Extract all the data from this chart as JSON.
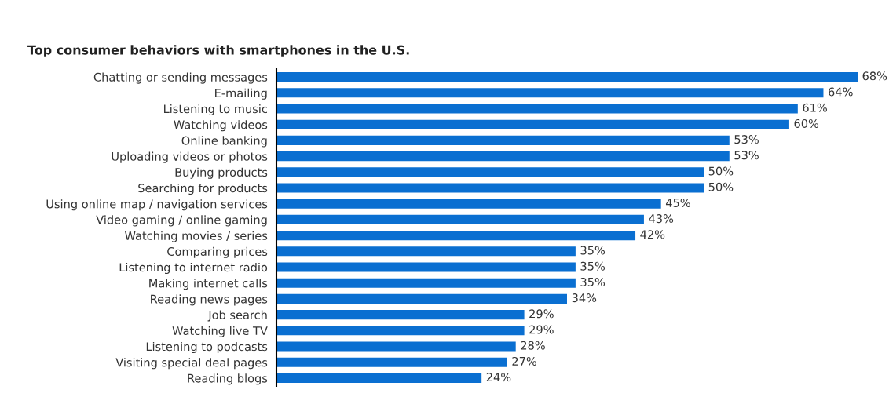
{
  "chart_data": {
    "type": "bar",
    "orientation": "horizontal",
    "title": "Top consumer behaviors with smartphones in the U.S.",
    "categories": [
      "Chatting or sending messages",
      "E-mailing",
      "Listening to music",
      "Watching videos",
      "Online banking",
      "Uploading videos or photos",
      "Buying products",
      "Searching for products",
      "Using online map / navigation services",
      "Video gaming / online gaming",
      "Watching movies / series",
      "Comparing prices",
      "Listening to internet radio",
      "Making internet calls",
      "Reading news pages",
      "Job search",
      "Watching live TV",
      "Listening to podcasts",
      "Visiting special deal pages",
      "Reading blogs"
    ],
    "values": [
      68,
      64,
      61,
      60,
      53,
      53,
      50,
      50,
      45,
      43,
      42,
      35,
      35,
      35,
      34,
      29,
      29,
      28,
      27,
      24
    ],
    "value_labels": [
      "68%",
      "64%",
      "61%",
      "60%",
      "53%",
      "53%",
      "50%",
      "50%",
      "45%",
      "43%",
      "42%",
      "35%",
      "35%",
      "35%",
      "34%",
      "29%",
      "29%",
      "28%",
      "27%",
      "24%"
    ],
    "color": "#0a6fd1",
    "grid": false,
    "legend": false
  }
}
